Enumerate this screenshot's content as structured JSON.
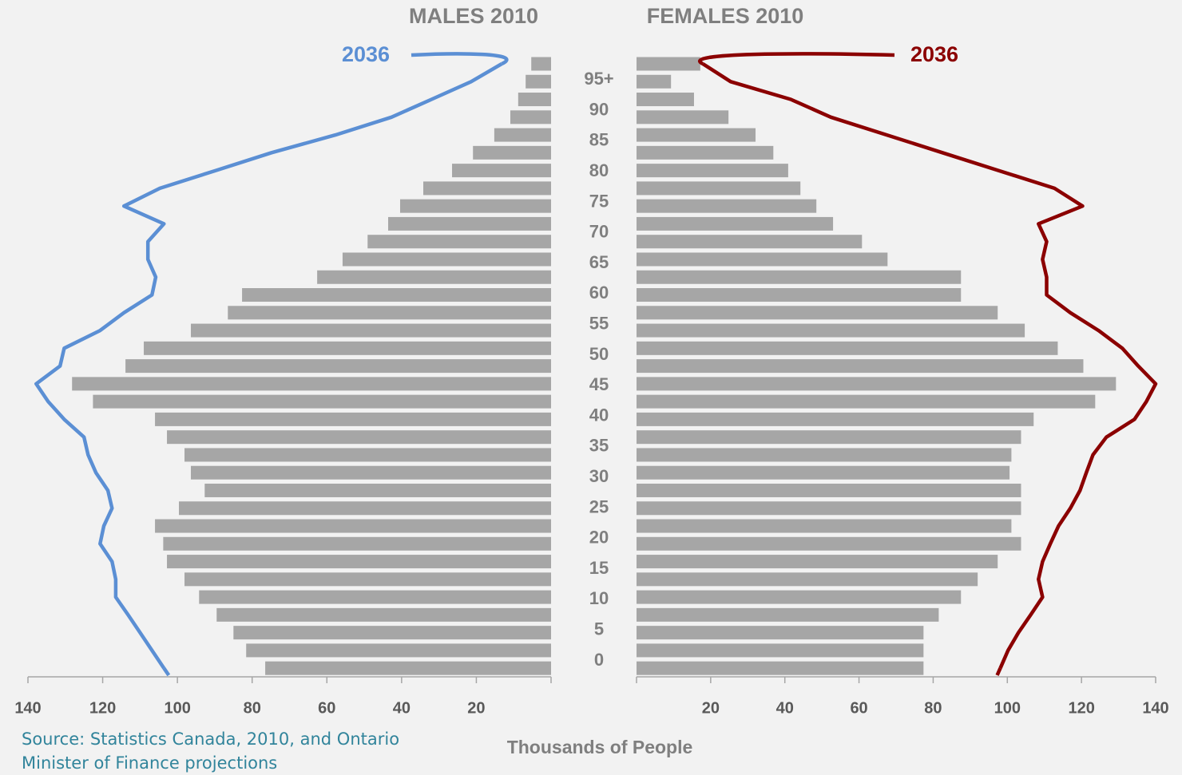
{
  "chart_data": [
    {
      "type": "bar",
      "title": "MALES 2010",
      "reversed": true,
      "color": "#a6a6a6",
      "xlim": [
        0,
        140
      ],
      "xticks": [
        20,
        40,
        60,
        80,
        100,
        120,
        140
      ],
      "values": [
        5.3,
        6.8,
        8.8,
        10.9,
        15.2,
        20.9,
        26.5,
        34.2,
        40.4,
        43.6,
        49.1,
        55.8,
        62.6,
        82.7,
        86.5,
        96.4,
        109,
        113.9,
        128.2,
        122.6,
        106,
        102.8,
        98.1,
        96.4,
        92.7,
        99.6,
        106,
        103.8,
        102.8,
        98.1,
        94.2,
        89.5,
        85,
        81.6,
        76.5
      ],
      "series": [
        {
          "name": "2036",
          "color": "#5b8fd4",
          "values": [
            13.2,
            21.4,
            32,
            42.7,
            57.7,
            74.8,
            89.7,
            104.7,
            114.3,
            103.6,
            107.9,
            107.9,
            105.8,
            106.8,
            114.3,
            120.7,
            130.3,
            131.4,
            137.8,
            134.6,
            130.3,
            125,
            123.9,
            121.8,
            118.6,
            117.5,
            119.7,
            120.7,
            117.5,
            116.5,
            116.5,
            113.2,
            110,
            106.8,
            103.6
          ]
        }
      ]
    },
    {
      "type": "bar",
      "title": "FEMALES 2010",
      "reversed": false,
      "color": "#a6a6a6",
      "xlim": [
        0,
        140
      ],
      "xticks": [
        20,
        40,
        60,
        80,
        100,
        120,
        140
      ],
      "values": [
        17.2,
        9.3,
        15.5,
        24.8,
        32.1,
        36.9,
        40.9,
        44.2,
        48.5,
        53,
        60.8,
        67.7,
        87.5,
        87.5,
        97.4,
        104.7,
        113.6,
        120.5,
        129.3,
        123.7,
        107.1,
        103.7,
        101.1,
        100.6,
        103.7,
        103.7,
        101.1,
        103.7,
        97.4,
        92,
        87.5,
        81.5,
        77.4,
        77.4,
        77.4
      ],
      "series": [
        {
          "name": "2036",
          "color": "#8b0000",
          "values": [
            17.9,
            25.4,
            41.6,
            52.4,
            67.5,
            82.5,
            97.6,
            112.7,
            120.3,
            108.4,
            110.6,
            109.5,
            110.6,
            110.6,
            117,
            124.6,
            131,
            135.3,
            140,
            137.5,
            134.3,
            126.7,
            123.1,
            121.3,
            119.6,
            117,
            113.8,
            111.6,
            109.5,
            108.4,
            109.5,
            106.3,
            103,
            100.2,
            98.1
          ]
        }
      ]
    }
  ],
  "age_labels": [
    "0",
    "5",
    "10",
    "15",
    "20",
    "25",
    "30",
    "35",
    "40",
    "45",
    "50",
    "55",
    "60",
    "65",
    "70",
    "75",
    "80",
    "85",
    "90",
    "95+"
  ],
  "xlabel": "Thousands of People",
  "source": "Source: Statistics Canada, 2010, and Ontario Minister of Finance projections"
}
